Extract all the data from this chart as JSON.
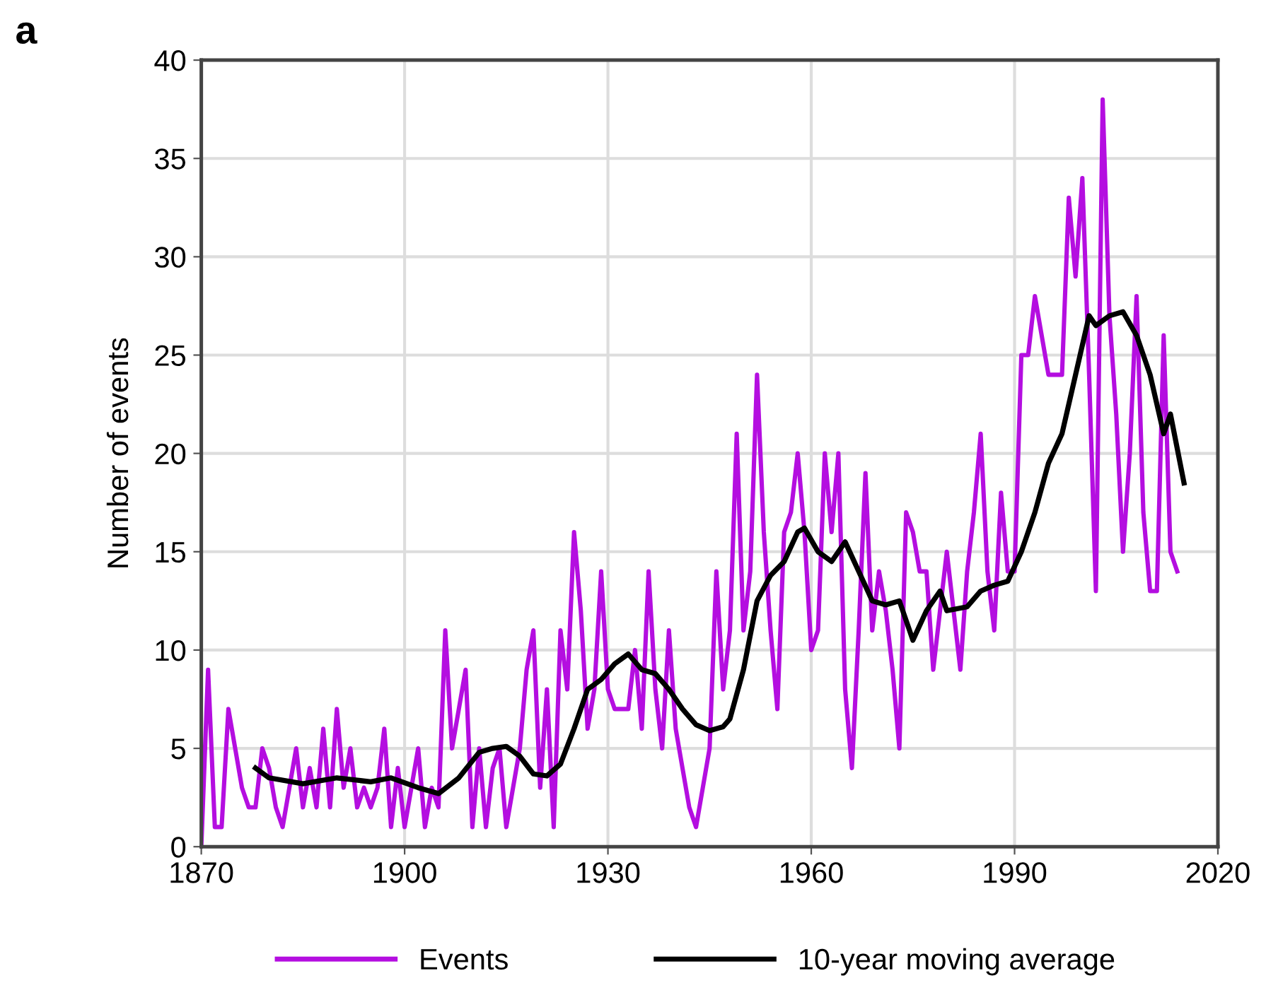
{
  "chart_data": {
    "type": "line",
    "ylabel": "Number of events",
    "annotations": [
      "a"
    ],
    "xlim": [
      1870,
      2020
    ],
    "xticks": [
      1870,
      1900,
      1930,
      1960,
      1990,
      2020
    ],
    "ylim": [
      0,
      40
    ],
    "yticks": [
      0,
      5,
      10,
      15,
      20,
      25,
      30,
      35,
      40
    ],
    "grid": true,
    "legend": "bottom",
    "marker": "none",
    "line_style": "solid",
    "series": [
      {
        "name": "Events",
        "color": "#b40ee0",
        "x": [
          1870,
          1871,
          1872,
          1873,
          1874,
          1875,
          1876,
          1877,
          1878,
          1879,
          1880,
          1881,
          1882,
          1883,
          1884,
          1885,
          1886,
          1887,
          1888,
          1889,
          1890,
          1891,
          1892,
          1893,
          1894,
          1895,
          1896,
          1897,
          1898,
          1899,
          1900,
          1901,
          1902,
          1903,
          1904,
          1905,
          1906,
          1907,
          1908,
          1909,
          1910,
          1911,
          1912,
          1913,
          1914,
          1915,
          1916,
          1917,
          1918,
          1919,
          1920,
          1921,
          1922,
          1923,
          1924,
          1925,
          1926,
          1927,
          1928,
          1929,
          1930,
          1931,
          1932,
          1933,
          1934,
          1935,
          1936,
          1937,
          1938,
          1939,
          1940,
          1941,
          1942,
          1943,
          1944,
          1945,
          1946,
          1947,
          1948,
          1949,
          1950,
          1951,
          1952,
          1953,
          1954,
          1955,
          1956,
          1957,
          1958,
          1959,
          1960,
          1961,
          1962,
          1963,
          1964,
          1965,
          1966,
          1967,
          1968,
          1969,
          1970,
          1971,
          1972,
          1973,
          1974,
          1975,
          1976,
          1977,
          1978,
          1979,
          1980,
          1981,
          1982,
          1983,
          1984,
          1985,
          1986,
          1987,
          1988,
          1989,
          1990,
          1991,
          1992,
          1993,
          1994,
          1995,
          1996,
          1997,
          1998,
          1999,
          2000,
          2001,
          2002,
          2003,
          2004,
          2005,
          2006,
          2007,
          2008,
          2009,
          2010,
          2011,
          2012,
          2013,
          2014
        ],
        "values": [
          0,
          9,
          1,
          1,
          7,
          5,
          3,
          2,
          2,
          5,
          4,
          2,
          1,
          3,
          5,
          2,
          4,
          2,
          6,
          2,
          7,
          3,
          5,
          2,
          3,
          2,
          3,
          6,
          1,
          4,
          1,
          3,
          5,
          1,
          3,
          2,
          11,
          5,
          7,
          9,
          1,
          5,
          1,
          4,
          5,
          1,
          3,
          5,
          9,
          11,
          3,
          8,
          1,
          11,
          8,
          16,
          12,
          6,
          8,
          14,
          8,
          7,
          7,
          7,
          10,
          6,
          14,
          8,
          5,
          11,
          6,
          4,
          2,
          1,
          3,
          5,
          14,
          8,
          11,
          21,
          11,
          14,
          24,
          16,
          11,
          7,
          16,
          17,
          20,
          16,
          10,
          11,
          20,
          16,
          20,
          8,
          4,
          11,
          19,
          11,
          14,
          12,
          9,
          5,
          17,
          16,
          14,
          14,
          9,
          12,
          15,
          12,
          9,
          14,
          17,
          21,
          14,
          11,
          18,
          14,
          14,
          25,
          25,
          28,
          26,
          24,
          24,
          24,
          33,
          29,
          34,
          24,
          13,
          38,
          27,
          22,
          15,
          20,
          28,
          17,
          13,
          13,
          26,
          15,
          14
        ]
      },
      {
        "name": "10-year moving average",
        "color": "#000000",
        "x": [
          1878,
          1880,
          1885,
          1890,
          1895,
          1898,
          1902,
          1905,
          1908,
          1911,
          1913,
          1915,
          1917,
          1919,
          1921,
          1923,
          1925,
          1927,
          1929,
          1931,
          1933,
          1935,
          1937,
          1939,
          1941,
          1943,
          1945,
          1947,
          1948,
          1950,
          1952,
          1954,
          1956,
          1958,
          1959,
          1961,
          1963,
          1965,
          1967,
          1969,
          1971,
          1973,
          1975,
          1977,
          1979,
          1980,
          1983,
          1985,
          1987,
          1989,
          1991,
          1993,
          1995,
          1997,
          1999,
          2001,
          2002,
          2004,
          2006,
          2008,
          2010,
          2012,
          2013,
          2015
        ],
        "values": [
          4,
          3.5,
          3.2,
          3.5,
          3.3,
          3.5,
          3.0,
          2.7,
          3.5,
          4.8,
          5.0,
          5.1,
          4.6,
          3.7,
          3.6,
          4.2,
          6.0,
          8.0,
          8.5,
          9.3,
          9.8,
          9.0,
          8.8,
          8.0,
          7.0,
          6.2,
          5.9,
          6.1,
          6.5,
          9,
          12.5,
          13.8,
          14.5,
          16.0,
          16.2,
          15,
          14.5,
          15.5,
          14,
          12.5,
          12.3,
          12.5,
          10.5,
          12,
          13,
          12,
          12.2,
          13,
          13.3,
          13.5,
          15,
          17,
          19.5,
          21,
          24,
          27,
          26.5,
          27,
          27.2,
          26,
          24,
          21,
          22,
          18.5
        ]
      }
    ]
  }
}
